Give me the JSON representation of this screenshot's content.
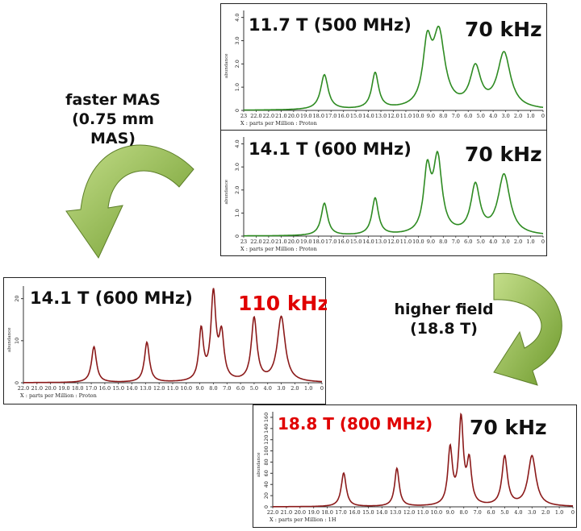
{
  "captions": {
    "faster_mas_line1": "faster MAS",
    "faster_mas_line2": "(0.75 mm MAS)",
    "higher_field_line1": "higher field",
    "higher_field_line2": "(18.8 T)"
  },
  "colors": {
    "green_trace": "#2e8b22",
    "red_trace": "#8b1a1a",
    "red_label": "#e00000",
    "black_label": "#111111",
    "arrow_green": "#8ab83a"
  },
  "chart_data": [
    {
      "type": "line",
      "title": "11.7 T (500 MHz)",
      "mas_label": "70 kHz",
      "xlabel": "X : parts per Million : Proton",
      "ylabel": "abundance",
      "xlim": [
        23.0,
        0.0
      ],
      "ylim": [
        0,
        4.3
      ],
      "y_ticks": [
        0,
        1.0,
        2.0,
        3.0,
        4.0
      ],
      "y_tick_labels": [
        "0",
        "1.0",
        "2.0",
        "3.0",
        "4.0"
      ],
      "x_tick_labels": [
        "23",
        "22.0",
        "22.0",
        "21.0",
        "20.0",
        "19.0",
        "18.0",
        "17.0",
        "16.0",
        "15.0",
        "14.0",
        "13.0",
        "12.0",
        "11.0",
        "10.0",
        "9.0",
        "8.0",
        "7.0",
        "6.0",
        "5.0",
        "4.0",
        "3.0",
        "2.0",
        "1.0",
        "0"
      ],
      "peaks": [
        {
          "center": 16.8,
          "height": 1.5,
          "width": 0.35
        },
        {
          "center": 12.9,
          "height": 1.55,
          "width": 0.32
        },
        {
          "center": 8.9,
          "height": 2.5,
          "width": 0.4
        },
        {
          "center": 8.0,
          "height": 3.1,
          "width": 0.55
        },
        {
          "center": 5.2,
          "height": 1.7,
          "width": 0.5
        },
        {
          "center": 3.0,
          "height": 2.4,
          "width": 0.6
        }
      ]
    },
    {
      "type": "line",
      "title": "14.1 T (600 MHz)",
      "mas_label": "70 kHz",
      "xlabel": "X : parts per Million : Proton",
      "ylabel": "abundance",
      "xlim": [
        23.0,
        0.0
      ],
      "ylim": [
        0,
        4.3
      ],
      "y_ticks": [
        0,
        1.0,
        2.0,
        3.0,
        4.0
      ],
      "y_tick_labels": [
        "0",
        "1.0",
        "2.0",
        "3.0",
        "4.0"
      ],
      "x_tick_labels": [
        "23",
        "22.0",
        "22.0",
        "21.0",
        "20.0",
        "19.0",
        "18.0",
        "17.0",
        "16.0",
        "15.0",
        "14.0",
        "13.0",
        "12.0",
        "11.0",
        "10.0",
        "9.0",
        "8.0",
        "7.0",
        "6.0",
        "5.0",
        "4.0",
        "3.0",
        "2.0",
        "1.0",
        "0"
      ],
      "peaks": [
        {
          "center": 16.8,
          "height": 1.4,
          "width": 0.3
        },
        {
          "center": 12.9,
          "height": 1.6,
          "width": 0.3
        },
        {
          "center": 8.9,
          "height": 2.6,
          "width": 0.33
        },
        {
          "center": 8.1,
          "height": 3.2,
          "width": 0.4
        },
        {
          "center": 5.2,
          "height": 2.1,
          "width": 0.42
        },
        {
          "center": 3.0,
          "height": 2.6,
          "width": 0.55
        }
      ]
    },
    {
      "type": "line",
      "title": "14.1 T (600 MHz)",
      "mas_label": "110 kHz",
      "xlabel": "X : parts per Million : Proton",
      "ylabel": "abundance",
      "xlim": [
        22.0,
        0.0
      ],
      "ylim": [
        0,
        23
      ],
      "y_ticks": [
        0,
        10,
        20
      ],
      "y_tick_labels": [
        "0",
        "10",
        "20"
      ],
      "x_tick_labels": [
        "22.0",
        "21.0",
        "20.0",
        "19.0",
        "18.0",
        "17.0",
        "16.0",
        "15.0",
        "14.0",
        "13.0",
        "12.0",
        "11.0",
        "10.0",
        "9.0",
        "8.0",
        "7.0",
        "6.0",
        "5.0",
        "4.0",
        "3.0",
        "2.0",
        "1.0",
        "0"
      ],
      "peaks": [
        {
          "center": 16.8,
          "height": 8.5,
          "width": 0.22
        },
        {
          "center": 12.9,
          "height": 9.5,
          "width": 0.22
        },
        {
          "center": 8.9,
          "height": 12.0,
          "width": 0.2
        },
        {
          "center": 8.0,
          "height": 20.5,
          "width": 0.22
        },
        {
          "center": 7.4,
          "height": 10.5,
          "width": 0.22
        },
        {
          "center": 5.0,
          "height": 15.0,
          "width": 0.25
        },
        {
          "center": 3.0,
          "height": 15.5,
          "width": 0.35
        }
      ]
    },
    {
      "type": "line",
      "title": "18.8 T (800 MHz)",
      "mas_label": "70 kHz",
      "xlabel": "X : parts per Million : 1H",
      "ylabel": "abundance",
      "xlim": [
        22.0,
        0.0
      ],
      "ylim": [
        0,
        170
      ],
      "y_ticks": [
        0,
        20,
        40,
        60,
        80,
        100,
        120,
        140,
        160
      ],
      "y_tick_labels": [
        "0",
        "20",
        "40",
        "60",
        "80",
        "100",
        "120",
        "140",
        "160"
      ],
      "x_tick_labels": [
        "22.0",
        "21.0",
        "20.0",
        "19.0",
        "18.0",
        "17.0",
        "16.0",
        "15.0",
        "14.0",
        "13.0",
        "12.0",
        "11.0",
        "10.0",
        "9.0",
        "8.0",
        "7.0",
        "6.0",
        "5.0",
        "4.0",
        "3.0",
        "2.0",
        "1.0",
        "0"
      ],
      "peaks": [
        {
          "center": 16.8,
          "height": 60,
          "width": 0.22
        },
        {
          "center": 12.9,
          "height": 68,
          "width": 0.2
        },
        {
          "center": 9.0,
          "height": 100,
          "width": 0.2
        },
        {
          "center": 8.2,
          "height": 152,
          "width": 0.2
        },
        {
          "center": 7.6,
          "height": 75,
          "width": 0.2
        },
        {
          "center": 5.0,
          "height": 88,
          "width": 0.24
        },
        {
          "center": 3.0,
          "height": 90,
          "width": 0.35
        }
      ]
    }
  ]
}
